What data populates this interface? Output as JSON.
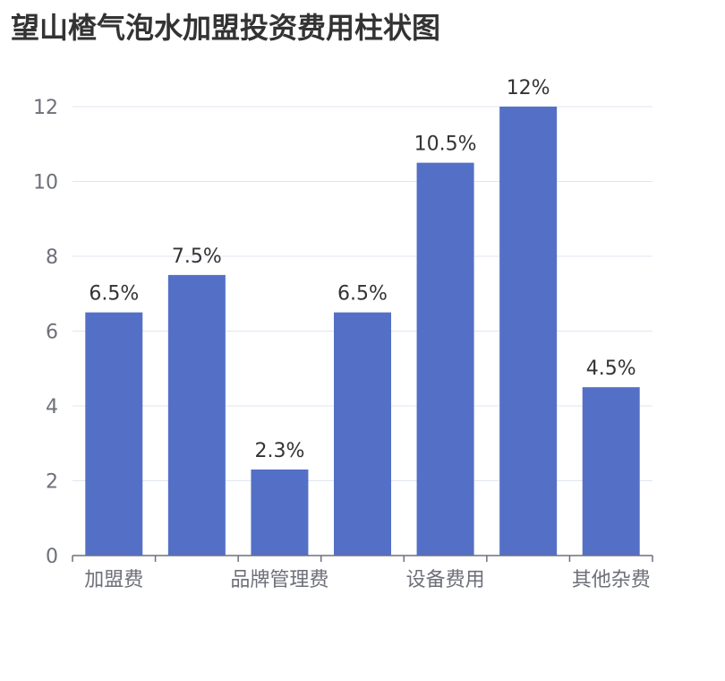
{
  "chart_data": {
    "type": "bar",
    "title": "望山楂气泡水加盟投资费用柱状图",
    "categories": [
      "加盟费",
      "",
      "品牌管理费",
      "",
      "设备费用",
      "",
      "其他杂费"
    ],
    "values": [
      6.5,
      7.5,
      2.3,
      6.5,
      10.5,
      12,
      4.5
    ],
    "value_labels": [
      "6.5%",
      "7.5%",
      "2.3%",
      "6.5%",
      "10.5%",
      "12%",
      "4.5%"
    ],
    "yticks": [
      "0",
      "2",
      "4",
      "6",
      "8",
      "10",
      "12"
    ],
    "ylim": [
      0,
      12
    ],
    "xlabel": "",
    "ylabel": "",
    "grid": true,
    "legend": "none",
    "colors": {
      "bar": "#5470c6",
      "grid": "#e0e6f1",
      "axis": "#6e7079"
    }
  }
}
